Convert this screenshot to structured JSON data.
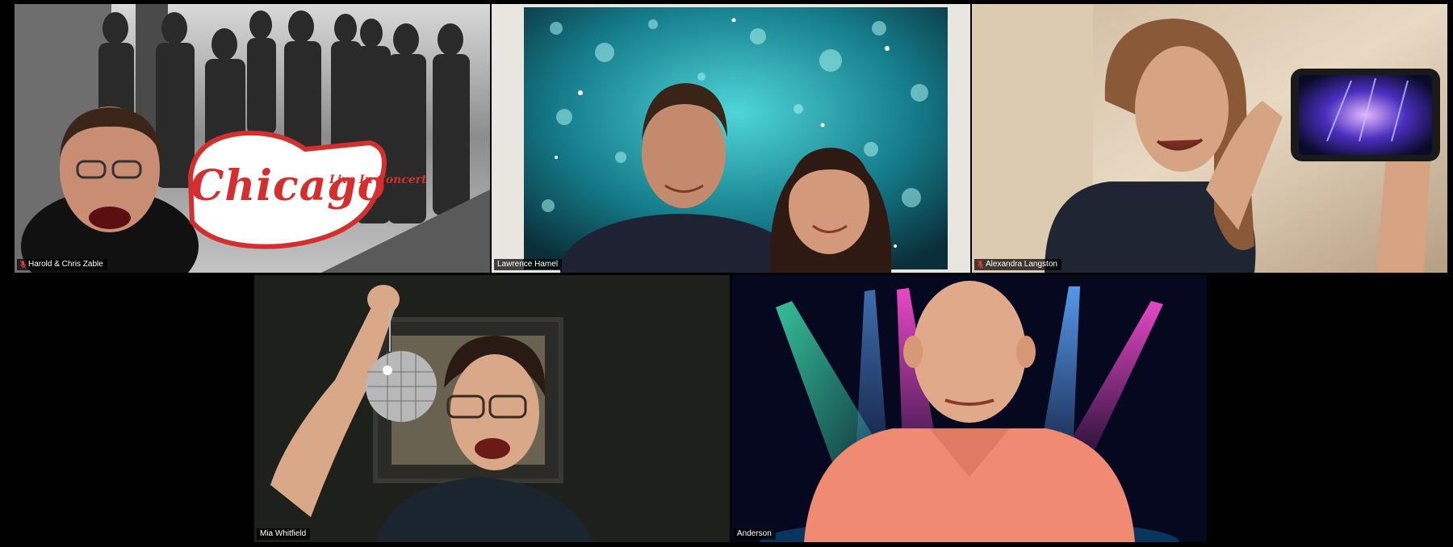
{
  "meeting": {
    "participants": [
      {
        "id": "tile-1",
        "name": "Harold & Chris Zable",
        "muted": true,
        "active_speaker": false
      },
      {
        "id": "tile-2",
        "name": "Lawrence Hamel",
        "muted": false,
        "active_speaker": true
      },
      {
        "id": "tile-3",
        "name": "Alexandra Langston",
        "muted": true,
        "active_speaker": false
      },
      {
        "id": "tile-4",
        "name": "Mia Whitfield",
        "muted": false,
        "active_speaker": false
      },
      {
        "id": "tile-5",
        "name": "Anderson",
        "muted": false,
        "active_speaker": false
      }
    ],
    "backgrounds": {
      "tile-1": {
        "logo_text": "Chicago",
        "logo_subtext": "Live In Concert"
      }
    },
    "icons": {
      "muted": "mic-muted-icon"
    },
    "colors": {
      "active_speaker_border": "#c9d32a",
      "muted_icon": "#e53935",
      "chicago_logo": "#d32f2f"
    }
  }
}
